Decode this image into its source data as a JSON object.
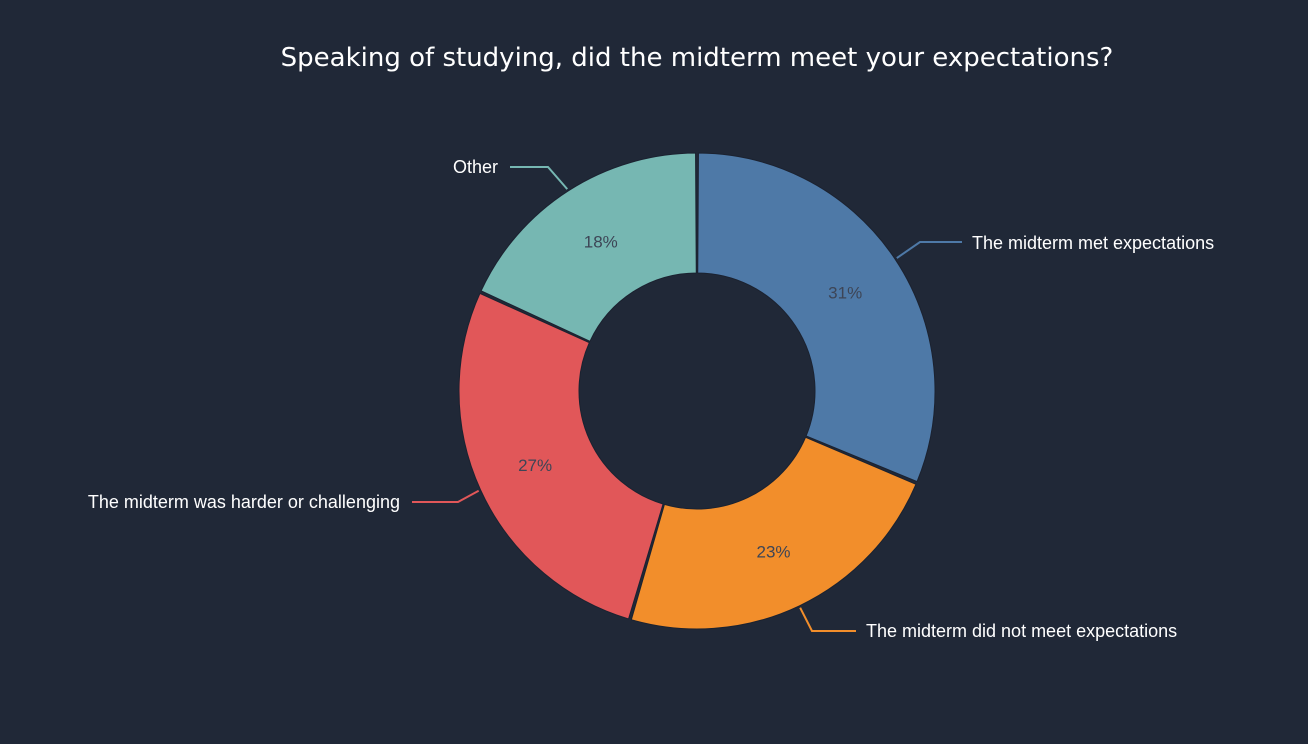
{
  "chart_data": {
    "type": "pie",
    "variant": "donut",
    "title": "Speaking of studying, did the midterm meet your expectations?",
    "slices": [
      {
        "label": "The midterm met expectations",
        "value": 31,
        "value_label": "31%",
        "color": "#4e79a7"
      },
      {
        "label": "The midterm did not meet expectations",
        "value": 23,
        "value_label": "23%",
        "color": "#f28e2b"
      },
      {
        "label": "The midterm was harder or challenging",
        "value": 27,
        "value_label": "27%",
        "color": "#e15759"
      },
      {
        "label": "Other",
        "value": 18,
        "value_label": "18%",
        "color": "#76b7b2"
      }
    ],
    "legend": "none",
    "background": "#202837"
  }
}
